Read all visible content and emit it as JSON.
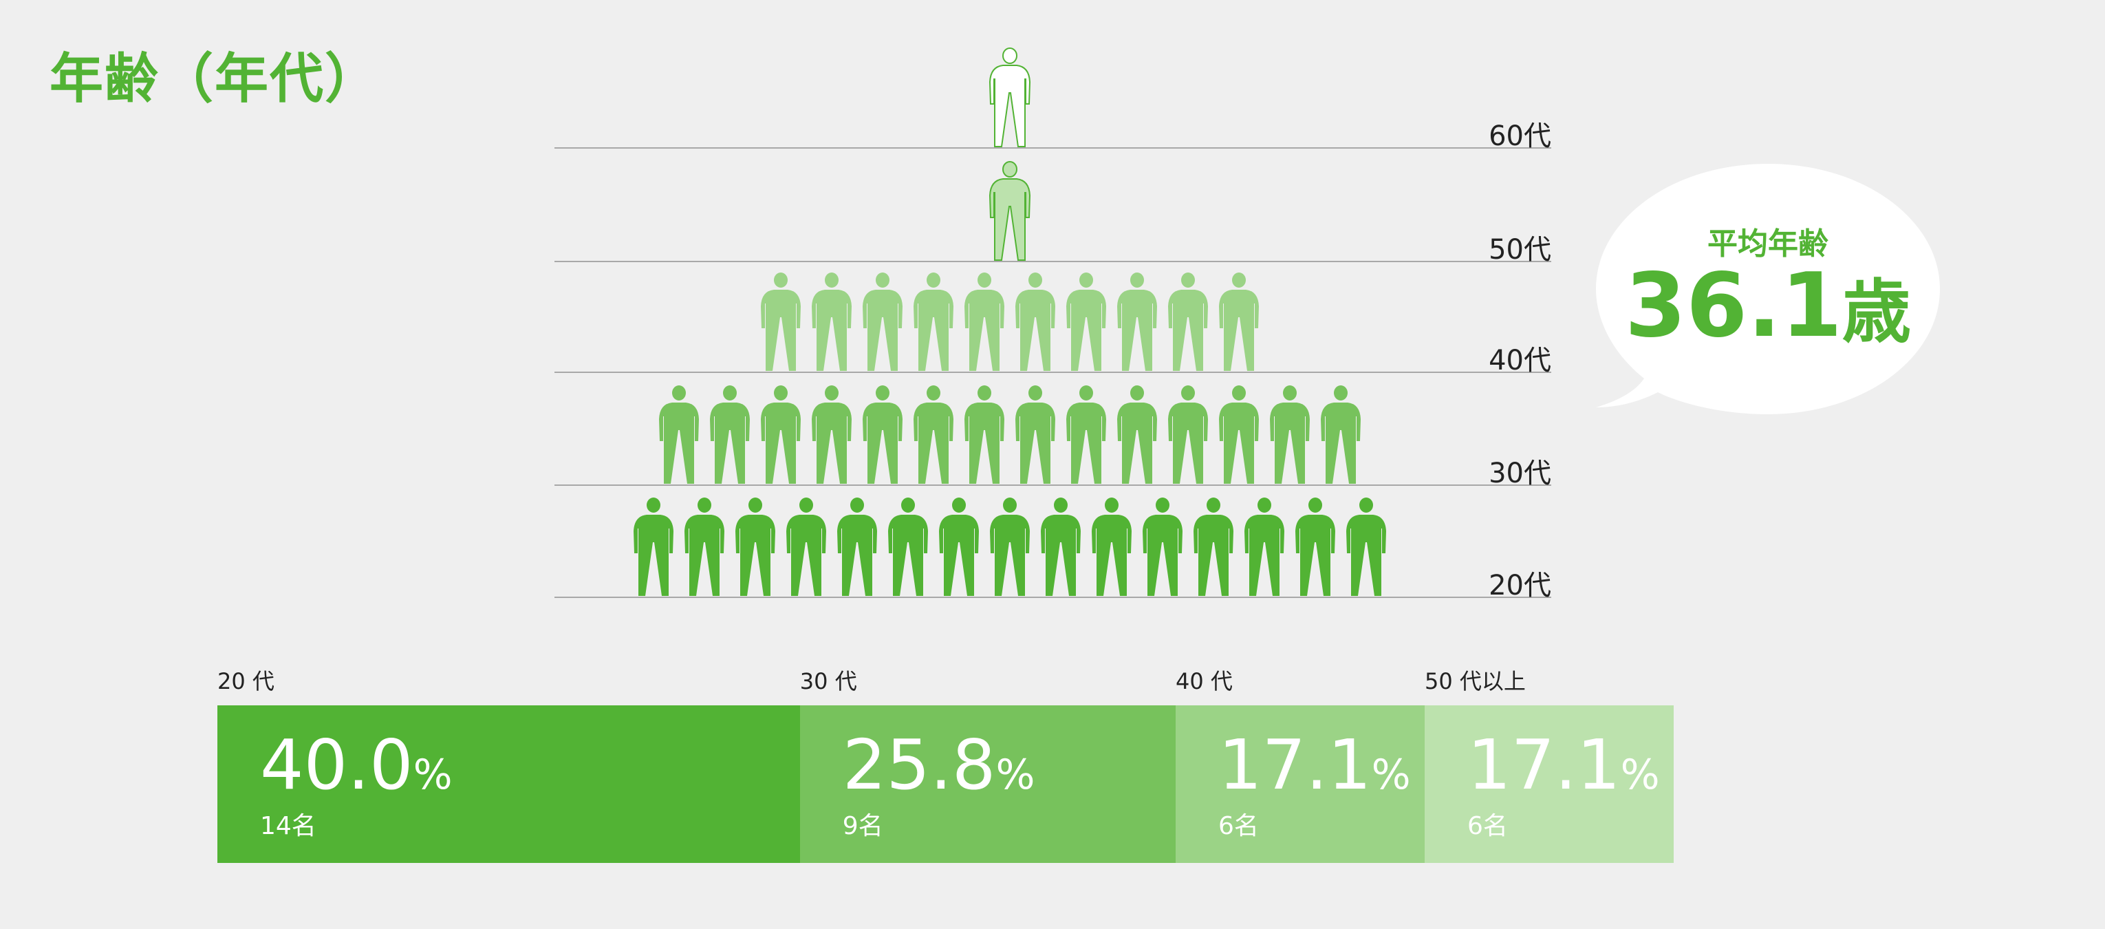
{
  "title": "年齢（年代）",
  "chart_data": {
    "type": "pictogram",
    "title": "年齢（年代）",
    "rows": [
      {
        "label": "60代",
        "count": 1,
        "color": "#ffffff",
        "outline": "#52b334"
      },
      {
        "label": "50代",
        "count": 1,
        "color": "#bce2ad",
        "outline": "#52b334"
      },
      {
        "label": "40代",
        "count": 10,
        "color": "#9bd386"
      },
      {
        "label": "30代",
        "count": 14,
        "color": "#77c25c"
      },
      {
        "label": "20代",
        "count": 15,
        "color": "#52b334"
      }
    ],
    "average": {
      "label": "平均年齢",
      "value": "36.1",
      "unit": "歳"
    },
    "stacked_bar": [
      {
        "label": "20 代",
        "percent": 40.0,
        "percent_text": "40.0",
        "count_text": "14名",
        "color": "#52b334"
      },
      {
        "label": "30 代",
        "percent": 25.8,
        "percent_text": "25.8",
        "count_text": "9名",
        "color": "#77c25c"
      },
      {
        "label": "40 代",
        "percent": 17.1,
        "percent_text": "17.1",
        "count_text": "6名",
        "color": "#9bd386"
      },
      {
        "label": "50 代以上",
        "percent": 17.1,
        "percent_text": "17.1",
        "count_text": "6名",
        "color": "#bce2ad"
      }
    ],
    "percent_sign": "%"
  }
}
